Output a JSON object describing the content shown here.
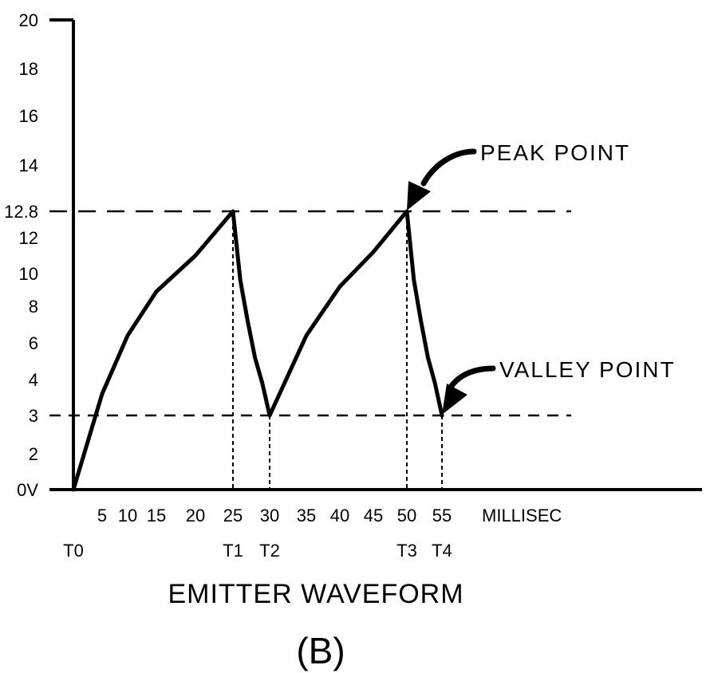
{
  "chart_data": {
    "type": "line",
    "title": "EMITTER WAVEFORM",
    "panel_label": "(B)",
    "xlabel": "MILLISEC",
    "ylabel": "",
    "ylim": [
      0,
      20
    ],
    "xlim": [
      0,
      70
    ],
    "y_ticks": [
      {
        "value": 0,
        "label": "0V"
      },
      {
        "value": 2,
        "label": "2"
      },
      {
        "value": 3,
        "label": "3"
      },
      {
        "value": 4,
        "label": "4"
      },
      {
        "value": 6,
        "label": "6"
      },
      {
        "value": 8,
        "label": "8"
      },
      {
        "value": 10,
        "label": "10"
      },
      {
        "value": 12,
        "label": "12"
      },
      {
        "value": 12.8,
        "label": "12.8"
      },
      {
        "value": 14,
        "label": "14"
      },
      {
        "value": 16,
        "label": "16"
      },
      {
        "value": 18,
        "label": "18"
      },
      {
        "value": 20,
        "label": "20"
      }
    ],
    "x_ticks": [
      {
        "value": 5,
        "label": "5"
      },
      {
        "value": 10,
        "label": "10"
      },
      {
        "value": 15,
        "label": "15"
      },
      {
        "value": 20,
        "label": "20"
      },
      {
        "value": 25,
        "label": "25"
      },
      {
        "value": 30,
        "label": "30"
      },
      {
        "value": 35,
        "label": "35"
      },
      {
        "value": 40,
        "label": "40"
      },
      {
        "value": 45,
        "label": "45"
      },
      {
        "value": 50,
        "label": "50"
      },
      {
        "value": 55,
        "label": "55"
      }
    ],
    "time_markers": [
      {
        "value": 0,
        "label": "T0"
      },
      {
        "value": 25,
        "label": "T1"
      },
      {
        "value": 30,
        "label": "T2"
      },
      {
        "value": 50,
        "label": "T3"
      },
      {
        "value": 55,
        "label": "T4"
      }
    ],
    "reference_lines": [
      {
        "y": 12.8
      },
      {
        "y": 3
      }
    ],
    "series": [
      {
        "x": [
          0,
          5,
          10,
          15,
          20,
          25,
          26,
          27,
          28,
          29,
          30,
          35,
          40,
          45,
          50,
          51,
          52,
          53,
          54,
          55
        ],
        "y": [
          0,
          3.6,
          6.4,
          8.9,
          11,
          12.8,
          9.6,
          7.2,
          5.2,
          3.9,
          3,
          6.4,
          9.2,
          11.2,
          12.8,
          9.6,
          7.2,
          5.2,
          3.9,
          3
        ]
      }
    ],
    "annotations": [
      {
        "text": "PEAK POINT",
        "x": 50,
        "y": 12.8
      },
      {
        "text": "VALLEY POINT",
        "x": 55,
        "y": 3
      }
    ]
  }
}
